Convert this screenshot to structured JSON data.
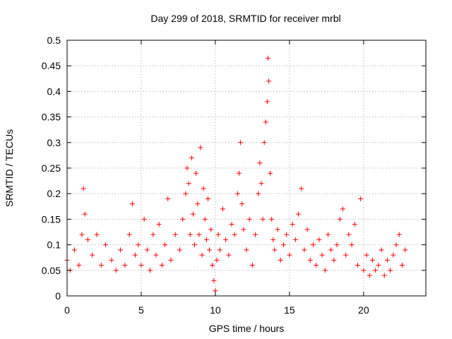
{
  "chart_data": {
    "type": "scatter",
    "title": "Day 299 of 2018, SRMTID for receiver mrbl",
    "xlabel": "GPS time / hours",
    "ylabel": "SRMTID / TECUs",
    "xlim": [
      0,
      24.2
    ],
    "ylim": [
      0,
      0.5
    ],
    "xticks": [
      0,
      5,
      10,
      15,
      20
    ],
    "xtick_labels": [
      "0",
      "5",
      "10",
      "15",
      "20"
    ],
    "yticks": [
      0,
      0.05,
      0.1,
      0.15,
      0.2,
      0.25,
      0.3,
      0.35,
      0.4,
      0.45,
      0.5
    ],
    "ytick_labels": [
      "0",
      "0.05",
      "0.1",
      "0.15",
      "0.2",
      "0.25",
      "0.3",
      "0.35",
      "0.4",
      "0.45",
      "0.5"
    ],
    "grid": true,
    "marker": "+",
    "color": "#ff0000",
    "series": [
      {
        "name": "SRMTID",
        "x": [
          0.0,
          0.2,
          0.5,
          0.8,
          1.0,
          1.1,
          1.2,
          1.4,
          1.7,
          2.0,
          2.3,
          2.6,
          3.0,
          3.3,
          3.6,
          3.9,
          4.2,
          4.4,
          4.6,
          4.8,
          5.0,
          5.2,
          5.4,
          5.6,
          5.8,
          6.0,
          6.2,
          6.4,
          6.6,
          6.8,
          7.0,
          7.3,
          7.6,
          7.8,
          8.0,
          8.1,
          8.2,
          8.3,
          8.4,
          8.5,
          8.6,
          8.7,
          8.8,
          8.9,
          9.0,
          9.1,
          9.2,
          9.3,
          9.4,
          9.5,
          9.6,
          9.7,
          9.8,
          9.9,
          10.0,
          10.1,
          10.2,
          10.3,
          10.5,
          10.7,
          10.9,
          11.1,
          11.3,
          11.5,
          11.6,
          11.7,
          11.8,
          11.9,
          12.1,
          12.3,
          12.5,
          12.7,
          12.9,
          13.0,
          13.1,
          13.2,
          13.3,
          13.4,
          13.5,
          13.55,
          13.6,
          13.7,
          13.8,
          13.9,
          14.0,
          14.2,
          14.4,
          14.6,
          14.8,
          15.0,
          15.2,
          15.4,
          15.6,
          15.8,
          16.0,
          16.2,
          16.4,
          16.6,
          16.8,
          17.0,
          17.2,
          17.4,
          17.6,
          17.8,
          18.0,
          18.2,
          18.4,
          18.6,
          18.8,
          19.0,
          19.2,
          19.4,
          19.6,
          19.8,
          20.0,
          20.2,
          20.4,
          20.6,
          20.8,
          21.0,
          21.2,
          21.4,
          21.6,
          21.8,
          22.0,
          22.2,
          22.4,
          22.6,
          22.8
        ],
        "y": [
          0.07,
          0.05,
          0.09,
          0.06,
          0.12,
          0.21,
          0.16,
          0.11,
          0.08,
          0.12,
          0.06,
          0.1,
          0.07,
          0.05,
          0.09,
          0.06,
          0.12,
          0.18,
          0.08,
          0.1,
          0.06,
          0.15,
          0.09,
          0.05,
          0.12,
          0.08,
          0.14,
          0.06,
          0.1,
          0.19,
          0.07,
          0.12,
          0.09,
          0.15,
          0.2,
          0.25,
          0.22,
          0.12,
          0.27,
          0.16,
          0.1,
          0.24,
          0.18,
          0.12,
          0.29,
          0.08,
          0.21,
          0.15,
          0.11,
          0.19,
          0.09,
          0.13,
          0.06,
          0.03,
          0.01,
          0.07,
          0.12,
          0.09,
          0.17,
          0.11,
          0.08,
          0.14,
          0.12,
          0.2,
          0.24,
          0.3,
          0.18,
          0.13,
          0.09,
          0.15,
          0.06,
          0.12,
          0.2,
          0.26,
          0.22,
          0.15,
          0.3,
          0.34,
          0.38,
          0.465,
          0.42,
          0.24,
          0.15,
          0.11,
          0.09,
          0.13,
          0.07,
          0.1,
          0.12,
          0.08,
          0.14,
          0.11,
          0.16,
          0.21,
          0.09,
          0.13,
          0.07,
          0.1,
          0.06,
          0.11,
          0.08,
          0.05,
          0.12,
          0.09,
          0.07,
          0.1,
          0.15,
          0.17,
          0.08,
          0.12,
          0.1,
          0.14,
          0.06,
          0.19,
          0.05,
          0.08,
          0.04,
          0.07,
          0.05,
          0.06,
          0.09,
          0.04,
          0.07,
          0.05,
          0.08,
          0.1,
          0.12,
          0.06,
          0.09
        ]
      }
    ]
  }
}
